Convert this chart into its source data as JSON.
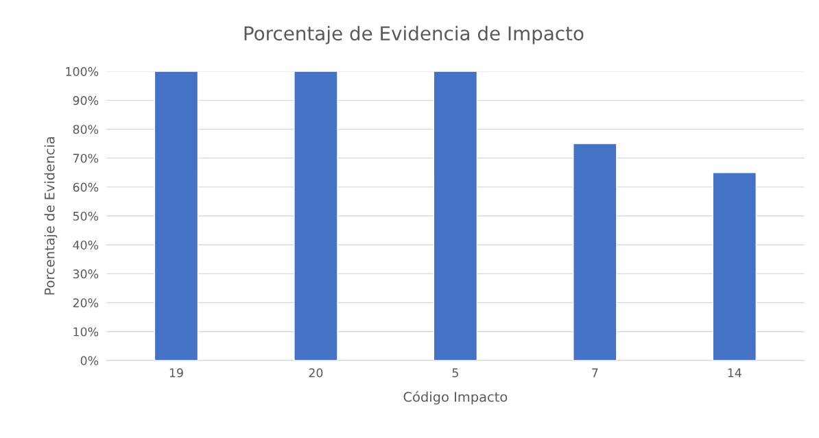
{
  "chart_data": {
    "type": "bar",
    "title": "Porcentaje de Evidencia de Impacto",
    "xlabel": "Código Impacto",
    "ylabel": "Porcentaje de Evidencia",
    "categories": [
      "19",
      "20",
      "5",
      "7",
      "14"
    ],
    "values": [
      100,
      100,
      100,
      75,
      65
    ],
    "color": "#4472c4",
    "ylim": [
      0,
      100
    ],
    "yticks": [
      {
        "value": 0,
        "label": "0%"
      },
      {
        "value": 10,
        "label": "10%"
      },
      {
        "value": 20,
        "label": "20%"
      },
      {
        "value": 30,
        "label": "30%"
      },
      {
        "value": 40,
        "label": "40%"
      },
      {
        "value": 50,
        "label": "50%"
      },
      {
        "value": 60,
        "label": "60%"
      },
      {
        "value": 70,
        "label": "70%"
      },
      {
        "value": 80,
        "label": "80%"
      },
      {
        "value": 90,
        "label": "90%"
      },
      {
        "value": 100,
        "label": "100%"
      }
    ],
    "grid": "y",
    "legend": false
  }
}
